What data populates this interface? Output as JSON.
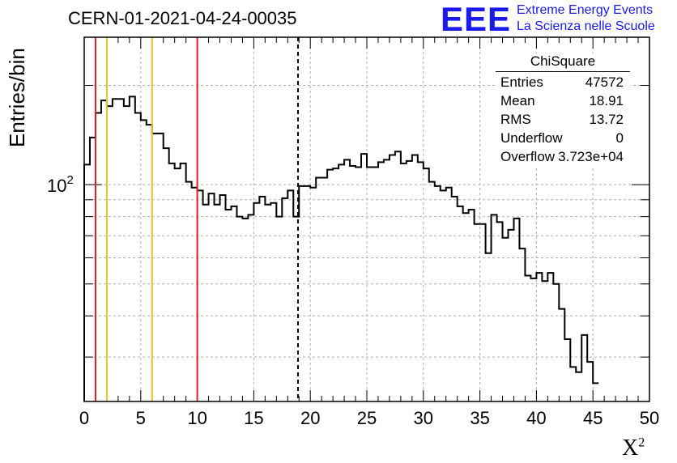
{
  "header": {
    "title": "CERN-01-2021-04-24-00035"
  },
  "logo": {
    "text": "EEE",
    "line1": "Extreme Energy Events",
    "line2": "La Scienza nelle Scuole"
  },
  "stats": {
    "title": "ChiSquare",
    "rows": [
      {
        "key": "Entries",
        "value": "47572"
      },
      {
        "key": "Mean",
        "value": "18.91"
      },
      {
        "key": "RMS",
        "value": "13.72"
      },
      {
        "key": "Underflow",
        "value": "0"
      },
      {
        "key": "Overflow",
        "value": "3.723e+04"
      }
    ]
  },
  "colors": {
    "red_line": "#e02020",
    "yellow_line": "#f0c020",
    "histogram": "#000000",
    "grid": "#b0b0b0"
  },
  "chart_data": {
    "type": "histogram",
    "ylabel": "Entries/bin",
    "xlabel_base": "X",
    "xlabel_sup": "2",
    "xlim": [
      0,
      50
    ],
    "ylim": [
      22,
      280
    ],
    "y_scale": "log",
    "x_ticks": [
      "0",
      "5",
      "10",
      "15",
      "20",
      "25",
      "30",
      "35",
      "40",
      "45",
      "50"
    ],
    "y_tick_label_base": "10",
    "y_tick_label_exp": "2",
    "grid": true,
    "bin_width": 0.5,
    "counts": [
      115,
      139,
      165,
      180,
      173,
      182,
      182,
      173,
      185,
      165,
      157,
      152,
      143,
      143,
      129,
      116,
      112,
      116,
      102,
      98,
      96,
      87,
      94,
      87,
      93,
      84,
      86,
      80,
      79,
      81,
      88,
      92,
      87,
      88,
      80,
      91,
      96,
      80,
      99,
      99,
      98,
      105,
      105,
      111,
      112,
      115,
      119,
      114,
      113,
      124,
      113,
      113,
      117,
      119,
      123,
      126,
      116,
      118,
      123,
      117,
      112,
      102,
      99,
      96,
      98,
      92,
      86,
      82,
      84,
      76,
      76,
      62,
      81,
      77,
      69,
      73,
      79,
      64,
      53,
      52,
      54,
      51,
      54,
      50,
      42,
      34,
      28,
      27,
      35,
      29,
      25
    ],
    "vertical_lines": [
      {
        "x": 1,
        "color": "red",
        "style": "solid"
      },
      {
        "x": 2,
        "color": "yellow",
        "style": "solid"
      },
      {
        "x": 6,
        "color": "yellow",
        "style": "solid"
      },
      {
        "x": 10,
        "color": "red",
        "style": "solid"
      },
      {
        "x": 18.91,
        "color": "black",
        "style": "dashed"
      }
    ]
  }
}
